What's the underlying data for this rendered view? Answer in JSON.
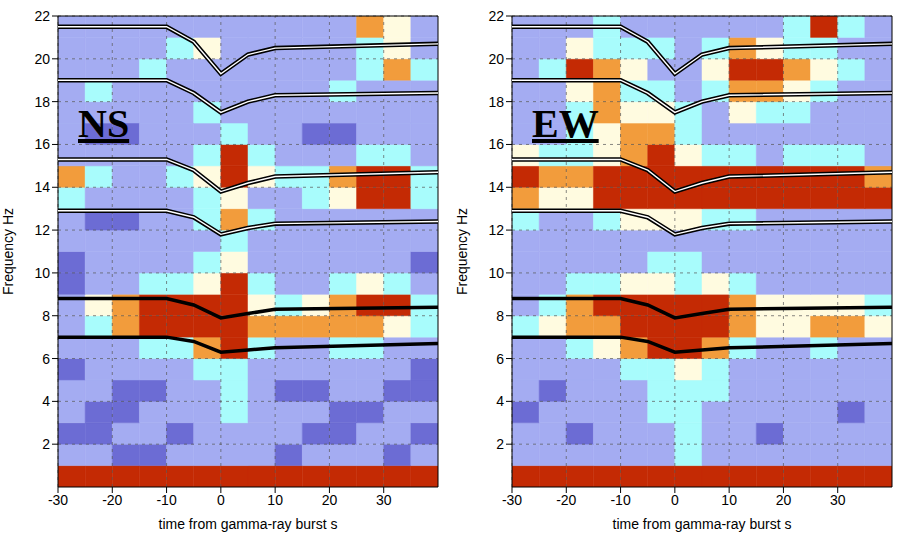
{
  "chart_data": [
    {
      "type": "heatmap",
      "panel": "NS",
      "x_label": "time from gamma-ray burst   s",
      "y_label": "Frequency  Hz",
      "xlim": [
        -30,
        40
      ],
      "xticks": [
        -30,
        -20,
        -10,
        0,
        10,
        20,
        30
      ],
      "ylim": [
        0,
        22
      ],
      "yticks": [
        2,
        4,
        6,
        8,
        10,
        12,
        14,
        16,
        18,
        20,
        22
      ],
      "grid": true,
      "x_edges": [
        -30,
        -25,
        -20,
        -15,
        -10,
        -5,
        0,
        5,
        10,
        15,
        20,
        25,
        30,
        35,
        40
      ],
      "y_edges": [
        0,
        1,
        2,
        3,
        4,
        5,
        6,
        7,
        8,
        9,
        10,
        11,
        12,
        13,
        14,
        15,
        16,
        17,
        18,
        19,
        20,
        21,
        22
      ],
      "colors": [
        "#6c6cd4",
        "#a4acf2",
        "#a8fcfc",
        "#fffbe0",
        "#f29c3c",
        "#c42a04"
      ],
      "levels": [
        0,
        1,
        2,
        3,
        4,
        5
      ],
      "cells": [
        [
          5,
          5,
          5,
          5,
          5,
          5,
          5,
          5,
          5,
          5,
          5,
          5,
          5,
          5
        ],
        [
          1,
          1,
          0,
          0,
          1,
          1,
          1,
          1,
          0,
          1,
          1,
          1,
          0,
          1
        ],
        [
          0,
          0,
          1,
          1,
          0,
          1,
          1,
          1,
          1,
          0,
          0,
          1,
          1,
          0
        ],
        [
          1,
          0,
          0,
          1,
          1,
          1,
          2,
          1,
          1,
          1,
          0,
          0,
          1,
          1
        ],
        [
          1,
          1,
          0,
          0,
          1,
          1,
          2,
          1,
          0,
          0,
          1,
          1,
          0,
          0
        ],
        [
          0,
          1,
          1,
          1,
          1,
          2,
          2,
          1,
          1,
          1,
          1,
          1,
          1,
          0
        ],
        [
          1,
          1,
          1,
          2,
          2,
          4,
          5,
          2,
          1,
          1,
          2,
          2,
          1,
          1
        ],
        [
          1,
          2,
          4,
          5,
          5,
          5,
          5,
          4,
          4,
          4,
          4,
          4,
          3,
          2
        ],
        [
          1,
          3,
          4,
          5,
          5,
          5,
          5,
          3,
          2,
          3,
          4,
          5,
          5,
          2
        ],
        [
          0,
          1,
          1,
          2,
          2,
          3,
          5,
          2,
          1,
          1,
          2,
          3,
          2,
          1
        ],
        [
          0,
          1,
          1,
          1,
          1,
          2,
          3,
          1,
          1,
          1,
          1,
          1,
          1,
          0
        ],
        [
          1,
          1,
          1,
          1,
          1,
          1,
          2,
          1,
          1,
          1,
          1,
          1,
          1,
          1
        ],
        [
          1,
          0,
          0,
          1,
          1,
          2,
          4,
          2,
          1,
          1,
          1,
          1,
          1,
          1
        ],
        [
          2,
          1,
          1,
          1,
          1,
          2,
          3,
          1,
          1,
          2,
          3,
          5,
          5,
          2
        ],
        [
          4,
          2,
          1,
          1,
          2,
          3,
          5,
          3,
          2,
          2,
          4,
          5,
          5,
          2
        ],
        [
          1,
          1,
          1,
          1,
          1,
          2,
          5,
          2,
          1,
          1,
          1,
          2,
          2,
          1
        ],
        [
          1,
          0,
          0,
          1,
          1,
          1,
          2,
          1,
          1,
          0,
          0,
          1,
          1,
          1
        ],
        [
          1,
          1,
          1,
          1,
          1,
          2,
          1,
          1,
          1,
          1,
          1,
          1,
          1,
          1
        ],
        [
          1,
          2,
          1,
          1,
          1,
          1,
          1,
          1,
          1,
          1,
          2,
          1,
          1,
          1
        ],
        [
          1,
          1,
          1,
          2,
          1,
          1,
          1,
          1,
          1,
          1,
          1,
          2,
          4,
          2
        ],
        [
          1,
          1,
          1,
          1,
          2,
          3,
          1,
          1,
          1,
          1,
          1,
          2,
          3,
          1
        ],
        [
          1,
          1,
          1,
          1,
          1,
          1,
          1,
          1,
          1,
          1,
          1,
          4,
          3,
          1
        ]
      ],
      "lines": [
        {
          "x": [
            -30,
            -10,
            -5,
            0,
            5,
            10,
            40
          ],
          "values": [
            21.5,
            21.5,
            20.8,
            19.3,
            20.2,
            20.5,
            20.7
          ],
          "line_style": "double"
        },
        {
          "x": [
            -30,
            -10,
            -5,
            0,
            5,
            10,
            40
          ],
          "values": [
            19.0,
            19.0,
            18.4,
            17.5,
            18.0,
            18.3,
            18.4
          ],
          "line_style": "double"
        },
        {
          "x": [
            -30,
            -10,
            -5,
            0,
            5,
            10,
            40
          ],
          "values": [
            15.3,
            15.3,
            14.8,
            13.8,
            14.2,
            14.5,
            14.7
          ],
          "line_style": "double"
        },
        {
          "x": [
            -30,
            -10,
            -5,
            0,
            5,
            10,
            40
          ],
          "values": [
            12.9,
            12.9,
            12.6,
            11.8,
            12.1,
            12.3,
            12.4
          ],
          "line_style": "double"
        },
        {
          "x": [
            -30,
            -10,
            -5,
            0,
            5,
            10,
            40
          ],
          "values": [
            8.8,
            8.8,
            8.5,
            7.9,
            8.1,
            8.3,
            8.4
          ],
          "line_style": "solid"
        },
        {
          "x": [
            -30,
            -10,
            -5,
            0,
            5,
            10,
            40
          ],
          "values": [
            7.0,
            7.0,
            6.8,
            6.3,
            6.4,
            6.5,
            6.7
          ],
          "line_style": "solid"
        }
      ]
    },
    {
      "type": "heatmap",
      "panel": "EW",
      "x_label": "time from gamma-ray burst   s",
      "y_label": "Frequency  Hz",
      "xlim": [
        -30,
        40
      ],
      "xticks": [
        -30,
        -20,
        -10,
        0,
        10,
        20,
        30
      ],
      "ylim": [
        0,
        22
      ],
      "yticks": [
        2,
        4,
        6,
        8,
        10,
        12,
        14,
        16,
        18,
        20,
        22
      ],
      "grid": true,
      "x_edges": [
        -30,
        -25,
        -20,
        -15,
        -10,
        -5,
        0,
        5,
        10,
        15,
        20,
        25,
        30,
        35,
        40
      ],
      "y_edges": [
        0,
        1,
        2,
        3,
        4,
        5,
        6,
        7,
        8,
        9,
        10,
        11,
        12,
        13,
        14,
        15,
        16,
        17,
        18,
        19,
        20,
        21,
        22
      ],
      "colors": [
        "#6c6cd4",
        "#a4acf2",
        "#a8fcfc",
        "#fffbe0",
        "#f29c3c",
        "#c42a04"
      ],
      "levels": [
        0,
        1,
        2,
        3,
        4,
        5
      ],
      "cells": [
        [
          5,
          5,
          5,
          5,
          5,
          5,
          5,
          5,
          5,
          5,
          5,
          5,
          5,
          5
        ],
        [
          1,
          1,
          1,
          1,
          1,
          1,
          2,
          1,
          1,
          1,
          1,
          1,
          1,
          1
        ],
        [
          1,
          1,
          0,
          1,
          1,
          1,
          2,
          1,
          1,
          0,
          1,
          1,
          1,
          1
        ],
        [
          0,
          1,
          1,
          1,
          1,
          2,
          2,
          1,
          1,
          1,
          1,
          1,
          0,
          1
        ],
        [
          1,
          0,
          1,
          1,
          1,
          2,
          2,
          2,
          1,
          1,
          1,
          1,
          1,
          1
        ],
        [
          1,
          1,
          1,
          1,
          2,
          2,
          3,
          2,
          1,
          1,
          1,
          1,
          1,
          1
        ],
        [
          1,
          1,
          2,
          3,
          4,
          5,
          5,
          4,
          2,
          1,
          1,
          2,
          1,
          1
        ],
        [
          2,
          3,
          4,
          4,
          5,
          5,
          5,
          5,
          4,
          3,
          3,
          4,
          4,
          3
        ],
        [
          1,
          2,
          4,
          5,
          5,
          5,
          5,
          5,
          4,
          3,
          3,
          3,
          3,
          2
        ],
        [
          1,
          1,
          2,
          2,
          3,
          3,
          2,
          3,
          2,
          1,
          1,
          1,
          1,
          1
        ],
        [
          1,
          1,
          1,
          1,
          1,
          2,
          2,
          1,
          1,
          1,
          1,
          1,
          1,
          1
        ],
        [
          1,
          1,
          1,
          1,
          1,
          1,
          1,
          1,
          1,
          1,
          1,
          1,
          1,
          1
        ],
        [
          2,
          1,
          1,
          2,
          3,
          3,
          3,
          2,
          2,
          1,
          1,
          1,
          1,
          1
        ],
        [
          4,
          3,
          3,
          5,
          5,
          5,
          5,
          5,
          5,
          5,
          5,
          5,
          5,
          5
        ],
        [
          5,
          4,
          4,
          5,
          5,
          5,
          5,
          5,
          5,
          5,
          5,
          5,
          5,
          4
        ],
        [
          3,
          2,
          2,
          3,
          4,
          5,
          3,
          2,
          2,
          1,
          2,
          2,
          2,
          1
        ],
        [
          1,
          1,
          2,
          3,
          4,
          4,
          2,
          1,
          1,
          1,
          1,
          1,
          1,
          1
        ],
        [
          1,
          1,
          2,
          4,
          3,
          3,
          2,
          1,
          3,
          2,
          2,
          1,
          1,
          1
        ],
        [
          1,
          1,
          3,
          4,
          2,
          2,
          1,
          2,
          4,
          4,
          3,
          2,
          1,
          1
        ],
        [
          1,
          2,
          5,
          4,
          3,
          1,
          1,
          3,
          5,
          5,
          4,
          3,
          2,
          1
        ],
        [
          1,
          1,
          3,
          2,
          2,
          2,
          1,
          2,
          4,
          3,
          2,
          2,
          1,
          1
        ],
        [
          1,
          1,
          1,
          2,
          1,
          1,
          1,
          1,
          1,
          1,
          2,
          5,
          2,
          1
        ]
      ],
      "lines": [
        {
          "x": [
            -30,
            -10,
            -5,
            0,
            5,
            10,
            40
          ],
          "values": [
            21.5,
            21.5,
            20.8,
            19.3,
            20.2,
            20.5,
            20.7
          ],
          "line_style": "double"
        },
        {
          "x": [
            -30,
            -10,
            -5,
            0,
            5,
            10,
            40
          ],
          "values": [
            19.0,
            19.0,
            18.4,
            17.5,
            18.0,
            18.3,
            18.4
          ],
          "line_style": "double"
        },
        {
          "x": [
            -30,
            -10,
            -5,
            0,
            5,
            10,
            40
          ],
          "values": [
            15.3,
            15.3,
            14.8,
            13.8,
            14.2,
            14.5,
            14.7
          ],
          "line_style": "double"
        },
        {
          "x": [
            -30,
            -10,
            -5,
            0,
            5,
            10,
            40
          ],
          "values": [
            12.9,
            12.9,
            12.6,
            11.8,
            12.1,
            12.3,
            12.4
          ],
          "line_style": "double"
        },
        {
          "x": [
            -30,
            -10,
            -5,
            0,
            5,
            10,
            40
          ],
          "values": [
            8.8,
            8.8,
            8.5,
            7.9,
            8.1,
            8.3,
            8.4
          ],
          "line_style": "solid"
        },
        {
          "x": [
            -30,
            -10,
            -5,
            0,
            5,
            10,
            40
          ],
          "values": [
            7.0,
            7.0,
            6.8,
            6.3,
            6.4,
            6.5,
            6.7
          ],
          "line_style": "solid"
        }
      ]
    }
  ]
}
